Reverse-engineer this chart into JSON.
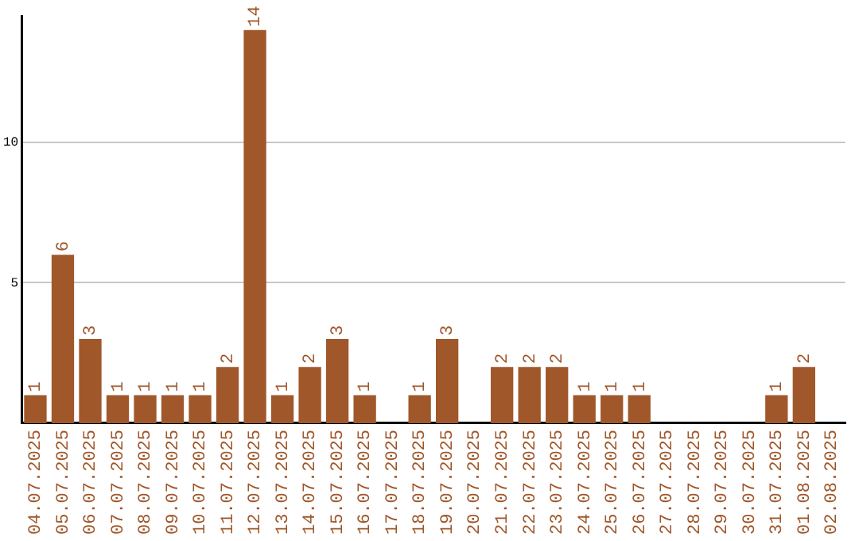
{
  "chart_data": {
    "type": "bar",
    "categories": [
      "04.07.2025",
      "05.07.2025",
      "06.07.2025",
      "07.07.2025",
      "08.07.2025",
      "09.07.2025",
      "10.07.2025",
      "11.07.2025",
      "12.07.2025",
      "13.07.2025",
      "14.07.2025",
      "15.07.2025",
      "16.07.2025",
      "17.07.2025",
      "18.07.2025",
      "19.07.2025",
      "20.07.2025",
      "21.07.2025",
      "22.07.2025",
      "23.07.2025",
      "24.07.2025",
      "25.07.2025",
      "26.07.2025",
      "27.07.2025",
      "28.07.2025",
      "29.07.2025",
      "30.07.2025",
      "31.07.2025",
      "01.08.2025",
      "02.08.2025"
    ],
    "values": [
      1,
      6,
      3,
      1,
      1,
      1,
      1,
      2,
      14,
      1,
      2,
      3,
      1,
      null,
      1,
      3,
      null,
      2,
      2,
      2,
      1,
      1,
      1,
      null,
      null,
      null,
      null,
      1,
      2,
      null
    ],
    "color": "#a0572a",
    "ylim": [
      0,
      14.5
    ],
    "yticks": [
      5,
      10
    ],
    "grid": "y",
    "data_labels": true,
    "legend": false
  }
}
